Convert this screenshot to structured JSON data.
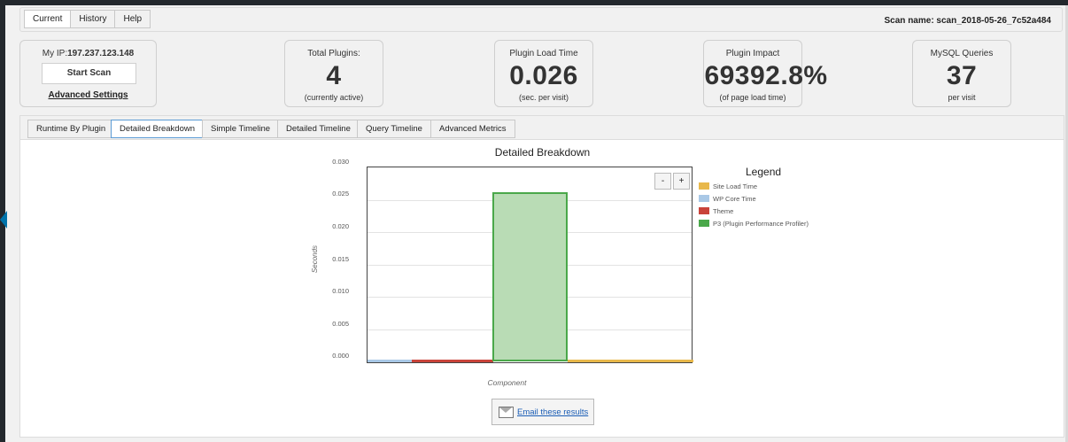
{
  "header": {
    "tabs": [
      {
        "label": "Current",
        "active": true
      },
      {
        "label": "History",
        "active": false
      },
      {
        "label": "Help",
        "active": false
      }
    ],
    "scan_name_label": "Scan name: scan_2018-05-26_7c52a484"
  },
  "ip_box": {
    "ip_prefix": "My IP:",
    "ip_value": "197.237.123.148",
    "start_scan_label": "Start Scan",
    "advanced_settings_label": "Advanced Settings"
  },
  "stats": [
    {
      "label": "Total Plugins:",
      "value": "4",
      "sub": "(currently active)"
    },
    {
      "label": "Plugin Load Time",
      "value": "0.026",
      "sub": "(sec. per visit)"
    },
    {
      "label": "Plugin Impact",
      "value": "69392.8%",
      "sub": "(of page load time)"
    },
    {
      "label": "MySQL Queries",
      "value": "37",
      "sub": "per visit"
    }
  ],
  "panel_tabs": [
    {
      "label": "Runtime By Plugin",
      "active": false
    },
    {
      "label": "Detailed Breakdown",
      "active": true
    },
    {
      "label": "Simple Timeline",
      "active": false
    },
    {
      "label": "Detailed Timeline",
      "active": false
    },
    {
      "label": "Query Timeline",
      "active": false
    },
    {
      "label": "Advanced Metrics",
      "active": false
    }
  ],
  "zoom": {
    "minus": "-",
    "plus": "+"
  },
  "email_label": "Email these results",
  "chart_data": {
    "type": "bar",
    "title": "Detailed Breakdown",
    "xlabel": "Component",
    "ylabel": "Seconds",
    "ylim": [
      0,
      0.03
    ],
    "yticks": [
      "0.030",
      "0.025",
      "0.020",
      "0.015",
      "0.010",
      "0.005",
      "0.000"
    ],
    "legend_title": "Legend",
    "legend_position": "right",
    "grid": true,
    "categories": [
      "Site Load Time",
      "WP Core Time",
      "Theme",
      "P3 (Plugin Performance Profiler)"
    ],
    "series": [
      {
        "name": "Site Load Time",
        "color": "#e8b84b",
        "value": 0.0
      },
      {
        "name": "WP Core Time",
        "color": "#a9c8e6",
        "value": 0.0
      },
      {
        "name": "Theme",
        "color": "#c9433a",
        "value": 0.0
      },
      {
        "name": "P3 (Plugin Performance Profiler)",
        "color": "#4aa84a",
        "value": 0.026
      }
    ]
  }
}
